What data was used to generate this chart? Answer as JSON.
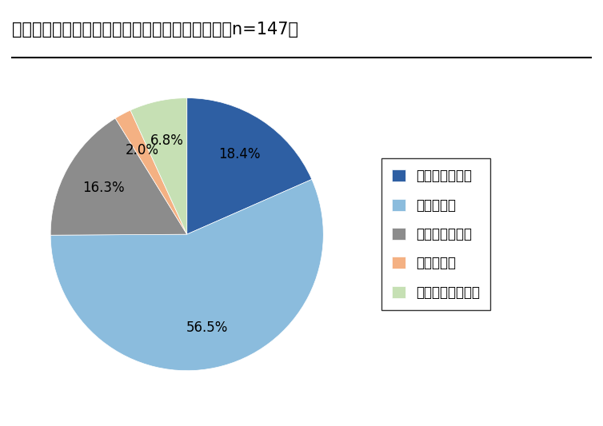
{
  "title": "１．高卒採用の募集人数の増減はありますか。（n=147）",
  "labels": [
    "前年より増やす",
    "前年と同じ",
    "前年より減らす",
    "採用しない",
    "未定・わからない"
  ],
  "values": [
    18.4,
    56.5,
    16.3,
    2.0,
    6.8
  ],
  "colors": [
    "#2e5fa3",
    "#8bbcdd",
    "#8c8c8c",
    "#f4b183",
    "#c6e0b4"
  ],
  "startangle": 90,
  "title_fontsize": 15,
  "legend_fontsize": 12,
  "autopct_fontsize": 12,
  "background_color": "#ffffff"
}
